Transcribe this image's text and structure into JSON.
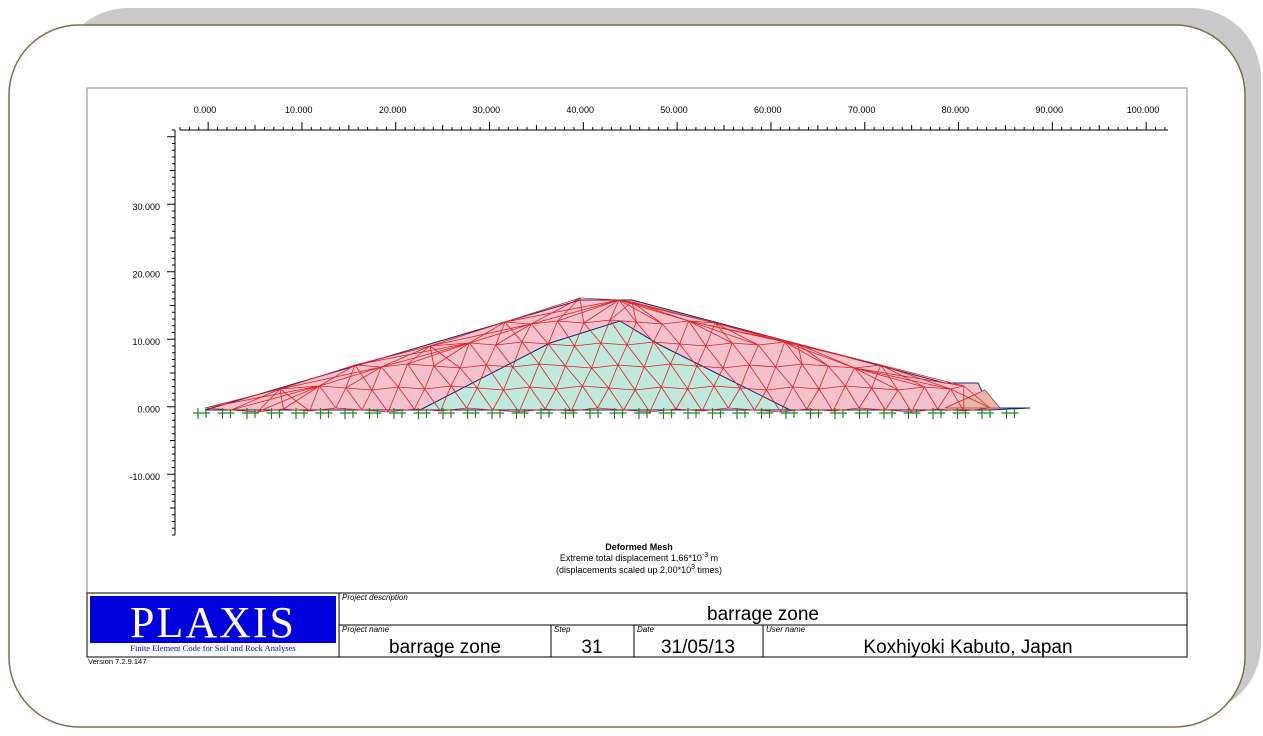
{
  "x_axis": {
    "ticks": [
      "0.000",
      "10.000",
      "20.000",
      "30.000",
      "40.000",
      "50.000",
      "60.000",
      "70.000",
      "80.000",
      "90.000",
      "100.000"
    ]
  },
  "y_axis": {
    "ticks": [
      "30.000",
      "20.000",
      "10.000",
      "0.000",
      "-10.000"
    ]
  },
  "caption": {
    "title": "Deformed Mesh",
    "line1": {
      "text": "Extreme total displacement 1,66*10",
      "sup": "-3",
      "tail": " m"
    },
    "line2": {
      "text": "(displacements scaled up 2,00*10",
      "sup": "3",
      "tail": " times)"
    }
  },
  "logo": {
    "name": "PLAXIS",
    "tagline": "Finite Element Code for Soil and Rock Analyses",
    "version": "Version 7.2.9.147"
  },
  "title_block": {
    "project_description": {
      "label": "Project description",
      "value": "barrage zone"
    },
    "project_name": {
      "label": "Project name",
      "value": "barrage zone"
    },
    "step": {
      "label": "Step",
      "value": "31"
    },
    "date": {
      "label": "Date",
      "value": "31/05/13"
    },
    "user_name": {
      "label": "User name",
      "value": "Koxhiyoki Kabuto, Japan"
    }
  }
}
